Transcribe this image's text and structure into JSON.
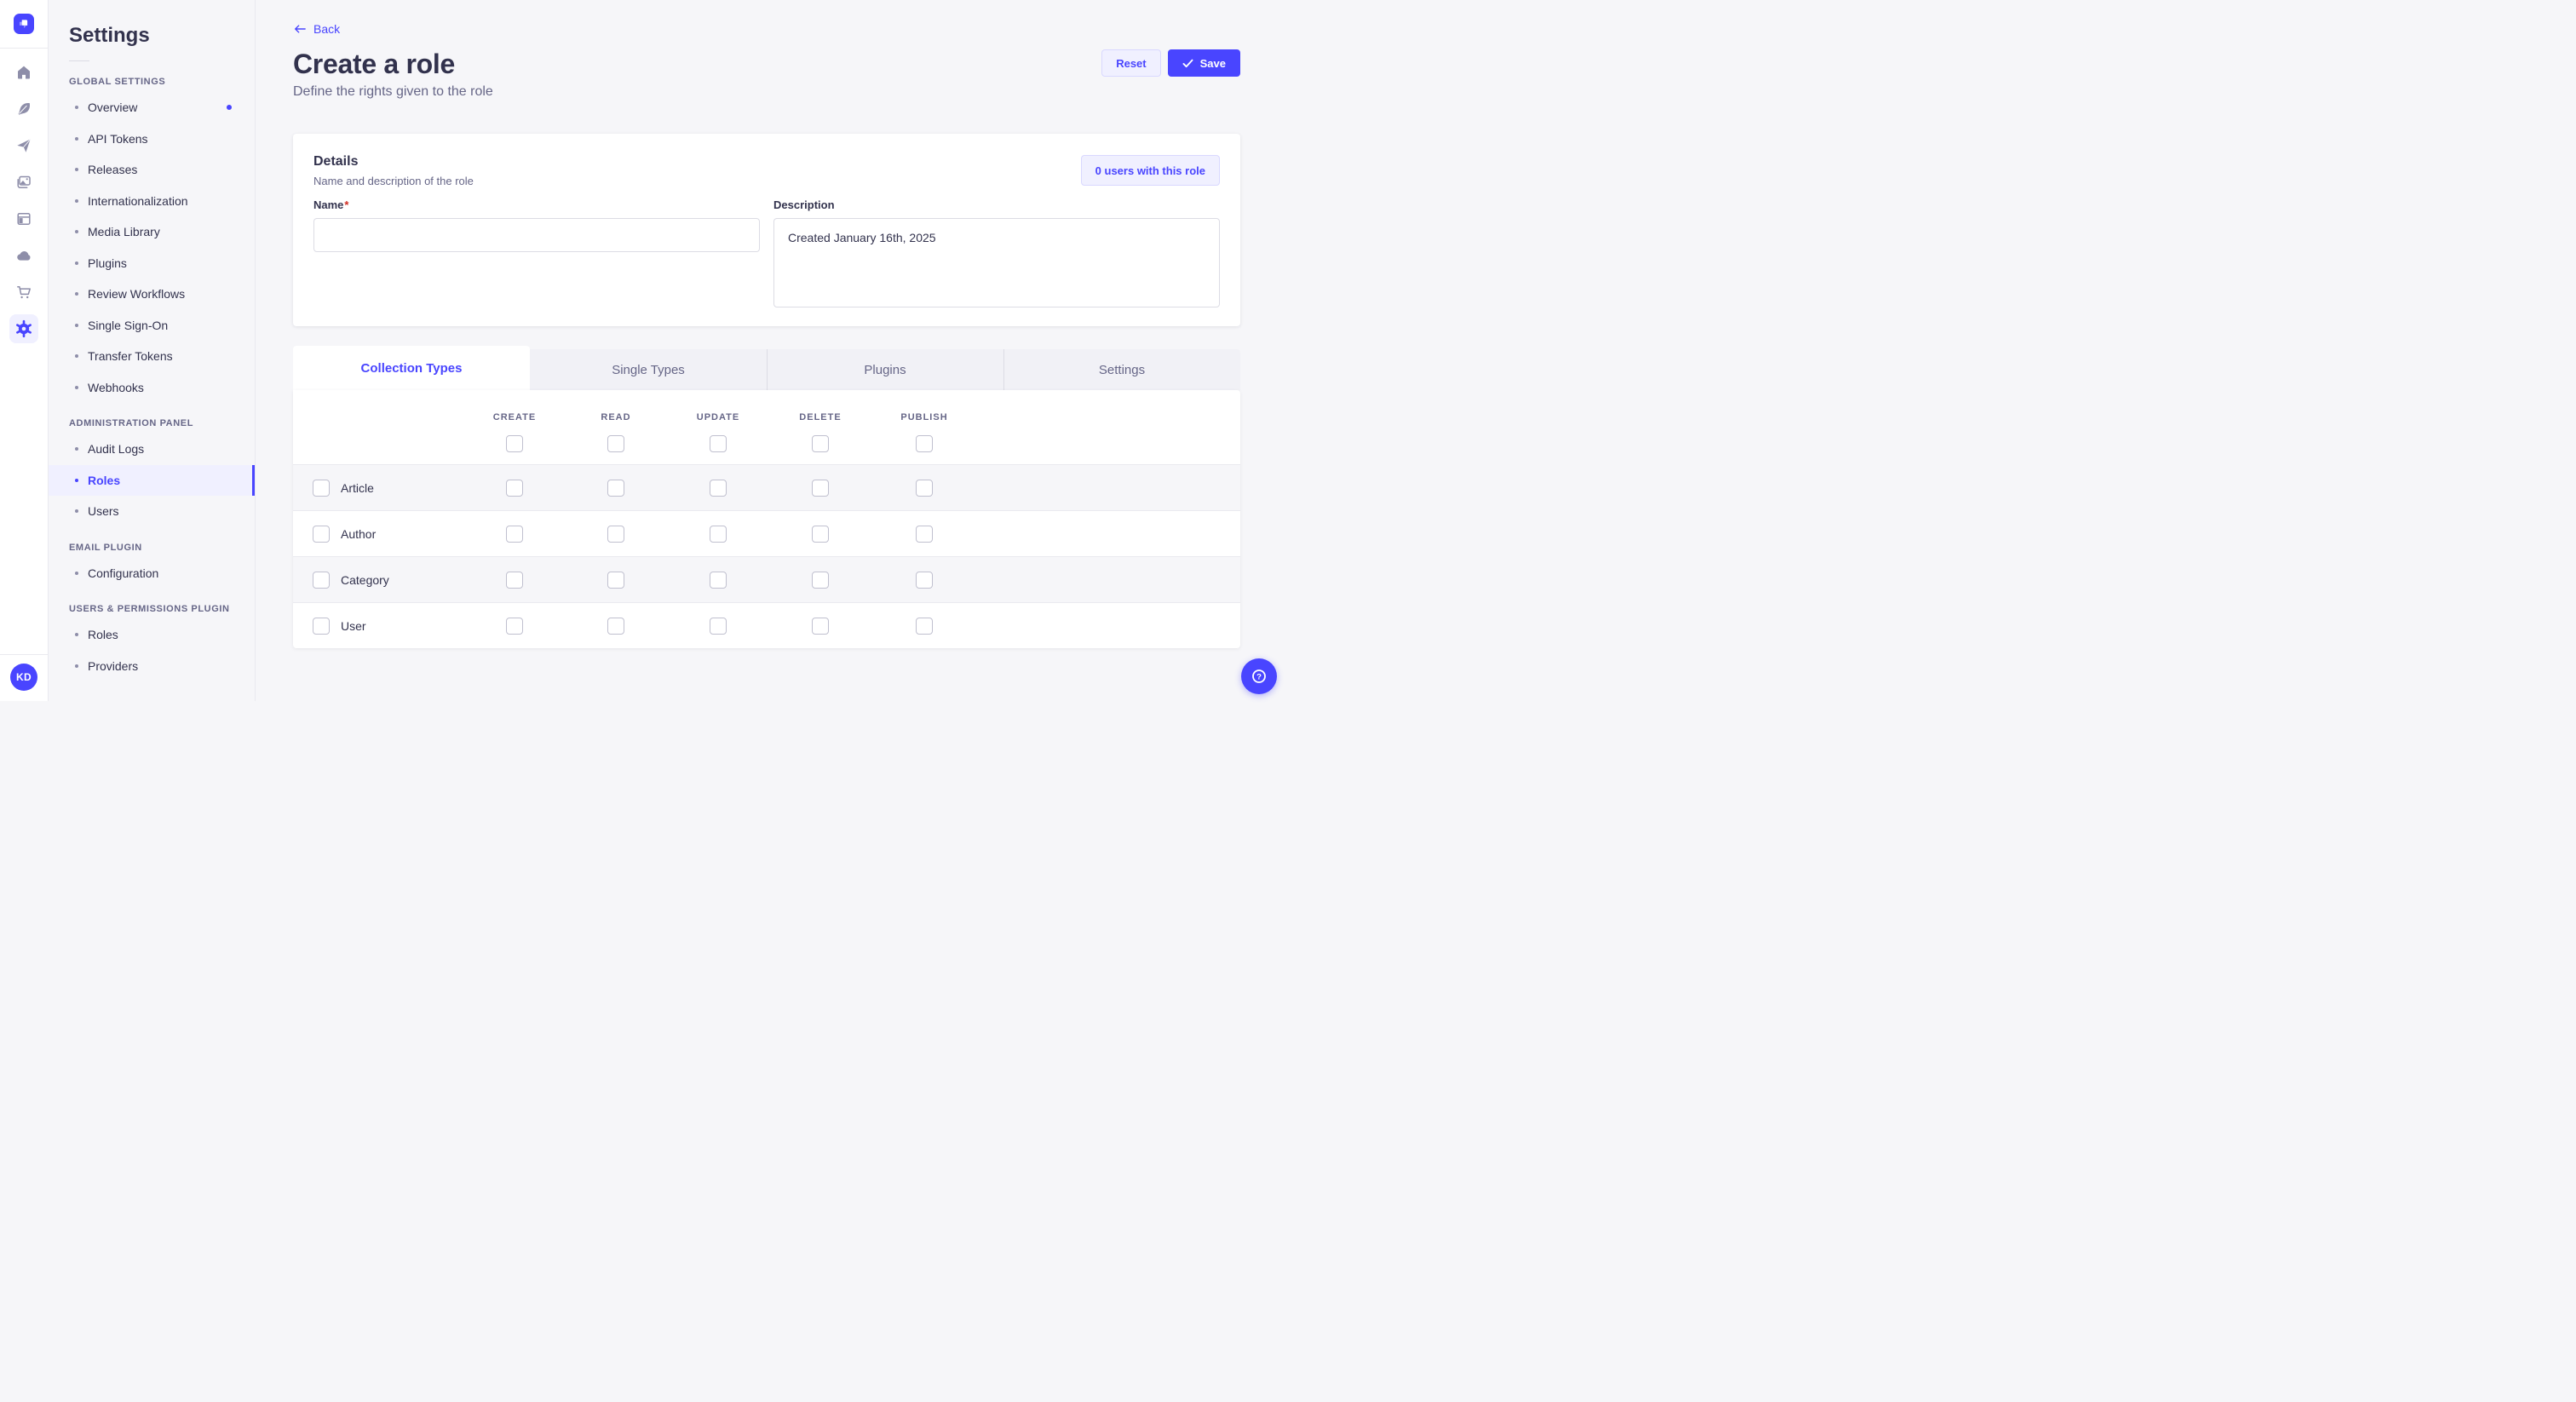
{
  "colors": {
    "accent": "#4945ff",
    "accent_light": "#f0f0ff",
    "page_bg": "#f6f6f9",
    "text": "#32324d",
    "muted": "#666687",
    "checkbox_border": "#c0c0cf"
  },
  "rail": {
    "logo_icon": "strapi-logo-icon",
    "icons": [
      "home-icon",
      "feather-icon",
      "paper-plane-icon",
      "media-library-icon",
      "layout-icon",
      "cloud-icon",
      "cart-icon",
      "gear-icon"
    ],
    "active_icon": "gear-icon",
    "avatar_initials": "KD"
  },
  "sidebar": {
    "title": "Settings",
    "sections": [
      {
        "label": "GLOBAL SETTINGS",
        "items": [
          {
            "label": "Overview",
            "notification": true
          },
          {
            "label": "API Tokens"
          },
          {
            "label": "Releases"
          },
          {
            "label": "Internationalization"
          },
          {
            "label": "Media Library"
          },
          {
            "label": "Plugins"
          },
          {
            "label": "Review Workflows"
          },
          {
            "label": "Single Sign-On"
          },
          {
            "label": "Transfer Tokens"
          },
          {
            "label": "Webhooks"
          }
        ]
      },
      {
        "label": "ADMINISTRATION PANEL",
        "items": [
          {
            "label": "Audit Logs"
          },
          {
            "label": "Roles",
            "active": true
          },
          {
            "label": "Users"
          }
        ]
      },
      {
        "label": "EMAIL PLUGIN",
        "items": [
          {
            "label": "Configuration"
          }
        ]
      },
      {
        "label": "USERS & PERMISSIONS PLUGIN",
        "items": [
          {
            "label": "Roles"
          },
          {
            "label": "Providers"
          }
        ]
      }
    ]
  },
  "header": {
    "back_label": "Back",
    "title": "Create a role",
    "subtitle": "Define the rights given to the role",
    "reset_label": "Reset",
    "save_label": "Save"
  },
  "details": {
    "title": "Details",
    "subtitle": "Name and description of the role",
    "users_button": "0 users with this role",
    "name_label": "Name",
    "name_required": "*",
    "name_value": "",
    "description_label": "Description",
    "description_value": "Created January 16th, 2025"
  },
  "tabs": [
    {
      "label": "Collection Types",
      "active": true
    },
    {
      "label": "Single Types"
    },
    {
      "label": "Plugins"
    },
    {
      "label": "Settings"
    }
  ],
  "permissions_table": {
    "columns": [
      "CREATE",
      "READ",
      "UPDATE",
      "DELETE",
      "PUBLISH"
    ],
    "select_all": [
      false,
      false,
      false,
      false,
      false
    ],
    "rows": [
      {
        "label": "Article",
        "selected": false,
        "permissions": [
          false,
          false,
          false,
          false,
          false
        ]
      },
      {
        "label": "Author",
        "selected": false,
        "permissions": [
          false,
          false,
          false,
          false,
          false
        ]
      },
      {
        "label": "Category",
        "selected": false,
        "permissions": [
          false,
          false,
          false,
          false,
          false
        ]
      },
      {
        "label": "User",
        "selected": false,
        "permissions": [
          false,
          false,
          false,
          false,
          false
        ]
      }
    ]
  },
  "fab": {
    "icon": "help-icon"
  }
}
